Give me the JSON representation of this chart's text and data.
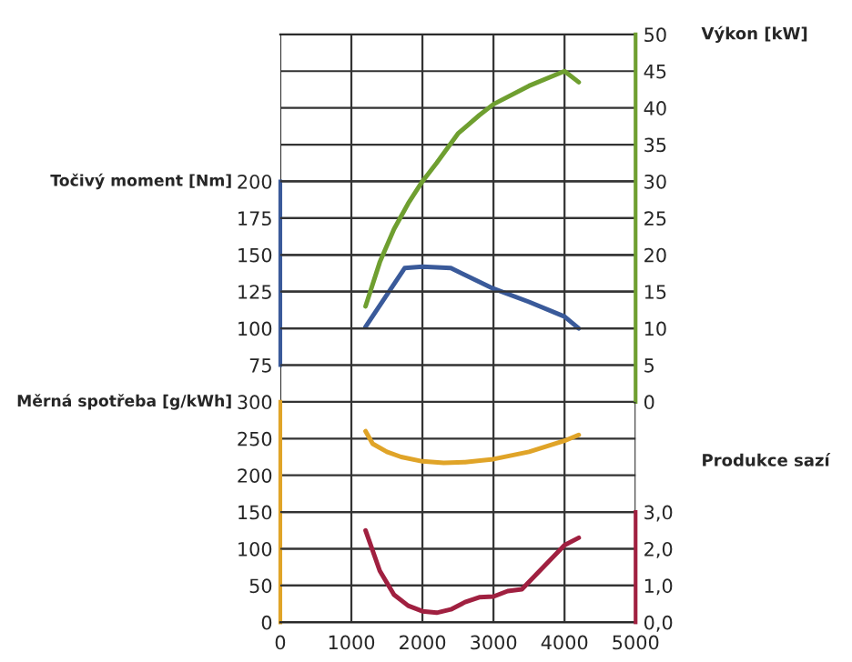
{
  "chart_data": [
    {
      "type": "line",
      "xlim": [
        0,
        5000
      ],
      "xticks": [
        0,
        1000,
        2000,
        3000,
        4000,
        5000
      ],
      "tick_labels": "y",
      "ylabel": "Točivý moment [Nm]",
      "ylim": [
        50,
        300
      ],
      "yticks": [
        75,
        100,
        125,
        150,
        175,
        200
      ],
      "y2label": "Výkon [kW]",
      "y2lim": [
        0,
        50
      ],
      "y2ticks": [
        0,
        5,
        10,
        15,
        20,
        25,
        30,
        35,
        40,
        45,
        50
      ],
      "grid": true,
      "series": [
        {
          "color": "#3a5a9a",
          "x": [
            1200,
            1750,
            2000,
            2400,
            3000,
            3500,
            4000,
            4200
          ],
          "values": [
            101,
            141,
            142,
            141,
            127,
            118,
            108,
            100
          ]
        },
        {
          "axis": "y2",
          "color": "#6f9f30",
          "x": [
            1200,
            1400,
            1600,
            1800,
            2000,
            2200,
            2500,
            2800,
            3000,
            3500,
            4000,
            4200
          ],
          "values": [
            13,
            19,
            23.5,
            27,
            30,
            32.5,
            36.5,
            39,
            40.5,
            43,
            45,
            43.5
          ]
        }
      ]
    },
    {
      "type": "line",
      "xlim": [
        0,
        5000
      ],
      "xticks": [
        0,
        1000,
        2000,
        3000,
        4000,
        5000
      ],
      "ylabel": "Měrná spotřeba [g/kWh]",
      "ylim": [
        0,
        300
      ],
      "yticks": [
        0,
        50,
        100,
        150,
        200,
        250,
        300
      ],
      "y2label": "Produkce sazí",
      "y2lim": [
        0,
        6
      ],
      "y2ticks": [
        {
          "value": 0,
          "label": "0,0"
        },
        {
          "value": 1,
          "label": "1,0"
        },
        {
          "value": 2,
          "label": "2,0"
        },
        {
          "value": 3,
          "label": "3,0"
        }
      ],
      "grid": true,
      "series": [
        {
          "color": "#e0a428",
          "x": [
            1200,
            1300,
            1500,
            1700,
            2000,
            2300,
            2600,
            3000,
            3500,
            4000,
            4200
          ],
          "values": [
            260,
            243,
            232,
            225,
            219,
            217,
            218,
            222,
            232,
            247,
            255
          ]
        },
        {
          "axis": "y2",
          "color": "#a02040",
          "x": [
            1200,
            1400,
            1600,
            1800,
            2000,
            2200,
            2400,
            2600,
            2800,
            3000,
            3200,
            3400,
            3700,
            4000,
            4200
          ],
          "values": [
            2.5,
            1.4,
            0.75,
            0.45,
            0.3,
            0.26,
            0.35,
            0.55,
            0.68,
            0.7,
            0.85,
            0.9,
            1.5,
            2.1,
            2.3
          ]
        }
      ]
    }
  ]
}
